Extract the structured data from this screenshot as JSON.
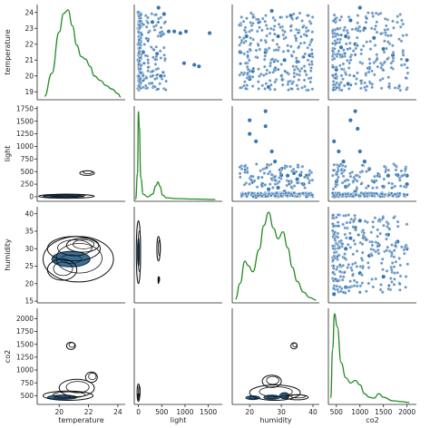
{
  "chart_data": {
    "type": "pairplot",
    "variables": [
      "temperature",
      "light",
      "humidity",
      "co2"
    ],
    "diag_kind": "kde",
    "upper_kind": "scatter",
    "lower_kind": "kde",
    "colors": {
      "diag_line": "#228b22",
      "scatter": "#3a76b0",
      "kde_line": "#111111",
      "kde_fill": "#3b6e95"
    },
    "axes": {
      "temperature": {
        "range": [
          18.5,
          24.5
        ],
        "ticks": [
          19,
          20,
          21,
          22,
          23,
          24
        ],
        "bottom_ticks": [
          20,
          22,
          24
        ],
        "label": "temperature"
      },
      "light": {
        "range": [
          -90,
          1800
        ],
        "ticks": [
          0,
          250,
          500,
          750,
          1000,
          1250,
          1500,
          1750
        ],
        "bottom_ticks": [
          0,
          500,
          1000,
          1500
        ],
        "label": "light"
      },
      "humidity": {
        "range": [
          14.5,
          42
        ],
        "ticks": [
          15,
          20,
          25,
          30,
          35,
          40
        ],
        "bottom_ticks": [
          20,
          30,
          40
        ],
        "label": "humidity"
      },
      "co2": {
        "range": [
          330,
          2200
        ],
        "ticks": [
          500,
          750,
          1000,
          1250,
          1500,
          1750,
          2000
        ],
        "bottom_ticks": [
          500,
          1000,
          1500,
          2000
        ],
        "label": "co2"
      }
    },
    "diagonal_kde": {
      "temperature": {
        "x": [
          19.0,
          19.5,
          20.0,
          20.3,
          20.6,
          20.9,
          21.2,
          21.5,
          21.8,
          22.1,
          22.4,
          22.8,
          23.2,
          23.6,
          24.0,
          24.2
        ],
        "density": [
          0.02,
          0.28,
          0.75,
          0.96,
          1.0,
          0.82,
          0.6,
          0.47,
          0.44,
          0.36,
          0.25,
          0.2,
          0.14,
          0.1,
          0.05,
          0.01
        ]
      },
      "light": {
        "x": [
          -60,
          -20,
          0,
          20,
          50,
          100,
          200,
          300,
          380,
          420,
          460,
          520,
          600,
          800,
          1200,
          1650
        ],
        "density": [
          0.0,
          0.3,
          1.0,
          0.82,
          0.25,
          0.06,
          0.03,
          0.06,
          0.16,
          0.2,
          0.15,
          0.05,
          0.02,
          0.01,
          0.005,
          0.0
        ]
      },
      "humidity": {
        "x": [
          15.5,
          17,
          18.5,
          19.5,
          21,
          23,
          24.5,
          26,
          27.5,
          29,
          30.5,
          32,
          33.5,
          35,
          37,
          39,
          41
        ],
        "density": [
          0.02,
          0.2,
          0.45,
          0.4,
          0.33,
          0.58,
          0.85,
          1.0,
          0.82,
          0.7,
          0.78,
          0.6,
          0.38,
          0.22,
          0.1,
          0.04,
          0.01
        ]
      },
      "co2": {
        "x": [
          380,
          420,
          460,
          520,
          600,
          700,
          800,
          900,
          1000,
          1100,
          1200,
          1300,
          1400,
          1500,
          1700,
          1900,
          2050
        ],
        "density": [
          0.05,
          0.6,
          1.0,
          0.85,
          0.45,
          0.28,
          0.22,
          0.25,
          0.2,
          0.1,
          0.06,
          0.05,
          0.1,
          0.06,
          0.02,
          0.01,
          0.0
        ]
      }
    },
    "scatter_samples": {
      "light_vs_temperature": [
        [
          0,
          19.2
        ],
        [
          0,
          20.0
        ],
        [
          0,
          21.0
        ],
        [
          0,
          22.0
        ],
        [
          0,
          23.0
        ],
        [
          0,
          24.0
        ],
        [
          100,
          21.5
        ],
        [
          200,
          22.3
        ],
        [
          300,
          23.4
        ],
        [
          400,
          21.4
        ],
        [
          430,
          24.3
        ],
        [
          480,
          20.0
        ],
        [
          500,
          22.6
        ],
        [
          550,
          23.9
        ],
        [
          650,
          22.8
        ],
        [
          770,
          22.8
        ],
        [
          900,
          22.7
        ],
        [
          1200,
          20.7
        ],
        [
          1300,
          20.6
        ],
        [
          1530,
          22.7
        ],
        [
          1020,
          22.8
        ],
        [
          980,
          20.8
        ]
      ],
      "humidity_vs_temperature": [
        [
          17,
          21.5
        ],
        [
          19,
          22.5
        ],
        [
          21,
          20.3
        ],
        [
          23,
          23.4
        ],
        [
          25,
          21.5
        ],
        [
          26,
          19.3
        ],
        [
          27,
          24.1
        ],
        [
          29,
          22.5
        ],
        [
          31,
          21.0
        ],
        [
          33,
          23.8
        ],
        [
          35,
          20.9
        ],
        [
          37,
          21.2
        ],
        [
          39,
          21.3
        ],
        [
          20,
          19.8
        ],
        [
          28,
          20.4
        ]
      ],
      "co2_vs_temperature": [
        [
          450,
          19.2
        ],
        [
          500,
          20.4
        ],
        [
          600,
          21.8
        ],
        [
          700,
          22.5
        ],
        [
          800,
          23.5
        ],
        [
          900,
          22.0
        ],
        [
          1000,
          24.3
        ],
        [
          1100,
          23.0
        ],
        [
          1300,
          22.4
        ],
        [
          1500,
          21.7
        ],
        [
          1700,
          21.3
        ],
        [
          2000,
          21.0
        ],
        [
          1200,
          20.5
        ],
        [
          750,
          19.5
        ]
      ],
      "temperature_vs_light": [],
      "humidity_vs_light": [
        [
          20,
          1520
        ],
        [
          20,
          1250
        ],
        [
          22,
          1100
        ],
        [
          25,
          1700
        ],
        [
          25,
          1400
        ],
        [
          27,
          900
        ],
        [
          28,
          700
        ],
        [
          30,
          550
        ],
        [
          30,
          430
        ],
        [
          32,
          420
        ],
        [
          34,
          470
        ],
        [
          36,
          430
        ],
        [
          38,
          420
        ],
        [
          21,
          300
        ],
        [
          24,
          250
        ],
        [
          26,
          150
        ],
        [
          29,
          180
        ],
        [
          31,
          100
        ],
        [
          33,
          300
        ],
        [
          35,
          350
        ],
        [
          37,
          250
        ],
        [
          22,
          0
        ],
        [
          28,
          20
        ],
        [
          33,
          40
        ],
        [
          38,
          10
        ]
      ],
      "co2_vs_light": [
        [
          450,
          1100
        ],
        [
          550,
          900
        ],
        [
          650,
          700
        ],
        [
          800,
          1520
        ],
        [
          900,
          1700
        ],
        [
          950,
          1350
        ],
        [
          1000,
          900
        ],
        [
          1100,
          700
        ],
        [
          1200,
          550
        ],
        [
          1400,
          430
        ],
        [
          1600,
          420
        ],
        [
          1800,
          430
        ],
        [
          2000,
          420
        ],
        [
          500,
          300
        ],
        [
          700,
          200
        ],
        [
          900,
          100
        ],
        [
          1300,
          300
        ],
        [
          1500,
          200
        ],
        [
          2000,
          250
        ],
        [
          450,
          0
        ],
        [
          800,
          20
        ],
        [
          1200,
          40
        ]
      ],
      "co2_vs_humidity": [
        [
          450,
          17
        ],
        [
          500,
          21
        ],
        [
          600,
          25
        ],
        [
          700,
          30
        ],
        [
          800,
          33
        ],
        [
          900,
          36
        ],
        [
          1000,
          38
        ],
        [
          1100,
          33
        ],
        [
          1200,
          28
        ],
        [
          1400,
          31
        ],
        [
          1600,
          34
        ],
        [
          1800,
          32
        ],
        [
          2000,
          30
        ],
        [
          1000,
          23
        ],
        [
          1500,
          22
        ],
        [
          700,
          19
        ]
      ]
    },
    "lower_kde_contours": {
      "light_given_temperature": [
        {
          "cx": 20.3,
          "cy": 10,
          "rx": 1.4,
          "ry": 25,
          "fill": true
        },
        {
          "cx": 20.5,
          "cy": 10,
          "rx": 1.9,
          "ry": 40,
          "fill": false
        },
        {
          "cx": 21.9,
          "cy": 470,
          "rx": 0.5,
          "ry": 45,
          "fill": false
        }
      ],
      "humidity_given_temperature": [
        {
          "cx": 20.8,
          "cy": 27,
          "rx": 1.3,
          "ry": 2.2,
          "fill": true
        },
        {
          "cx": 21.0,
          "cy": 30,
          "rx": 1.8,
          "ry": 3.5,
          "fill": false
        },
        {
          "cx": 21.3,
          "cy": 27,
          "rx": 2.4,
          "ry": 6.5,
          "fill": false
        },
        {
          "cx": 21.6,
          "cy": 31,
          "rx": 1.1,
          "ry": 2.0,
          "fill": false
        },
        {
          "cx": 20.2,
          "cy": 24,
          "rx": 1.0,
          "ry": 3.0,
          "fill": false
        }
      ],
      "co2_given_temperature": [
        {
          "cx": 20.2,
          "cy": 470,
          "rx": 1.0,
          "ry": 40,
          "fill": true
        },
        {
          "cx": 20.6,
          "cy": 500,
          "rx": 1.7,
          "ry": 90,
          "fill": false
        },
        {
          "cx": 21.2,
          "cy": 650,
          "rx": 1.2,
          "ry": 170,
          "fill": false
        },
        {
          "cx": 22.2,
          "cy": 860,
          "rx": 0.4,
          "ry": 100,
          "fill": false
        },
        {
          "cx": 20.8,
          "cy": 1470,
          "rx": 0.3,
          "ry": 70,
          "fill": false
        }
      ],
      "humidity_given_light": [
        {
          "cx": 0,
          "cy": 29,
          "rx": 20,
          "ry": 4,
          "fill": true
        },
        {
          "cx": 0,
          "cy": 29,
          "rx": 45,
          "ry": 9,
          "fill": false
        },
        {
          "cx": 430,
          "cy": 30,
          "rx": 35,
          "ry": 3.5,
          "fill": false
        },
        {
          "cx": 430,
          "cy": 21,
          "rx": 10,
          "ry": 1,
          "fill": false
        }
      ],
      "co2_given_light": [
        {
          "cx": 0,
          "cy": 480,
          "rx": 20,
          "ry": 60,
          "fill": true
        },
        {
          "cx": 0,
          "cy": 560,
          "rx": 30,
          "ry": 170,
          "fill": false
        }
      ],
      "co2_given_humidity": [
        {
          "cx": 21,
          "cy": 460,
          "rx": 2.2,
          "ry": 35,
          "fill": true
        },
        {
          "cx": 27,
          "cy": 470,
          "rx": 2.5,
          "ry": 40,
          "fill": true
        },
        {
          "cx": 31,
          "cy": 500,
          "rx": 1.5,
          "ry": 60,
          "fill": true
        },
        {
          "cx": 28,
          "cy": 560,
          "rx": 8,
          "ry": 150,
          "fill": false
        },
        {
          "cx": 27,
          "cy": 780,
          "rx": 3,
          "ry": 120,
          "fill": false
        },
        {
          "cx": 35,
          "cy": 470,
          "rx": 3.5,
          "ry": 50,
          "fill": false
        },
        {
          "cx": 34,
          "cy": 1470,
          "rx": 1.0,
          "ry": 60,
          "fill": false
        }
      ]
    }
  }
}
